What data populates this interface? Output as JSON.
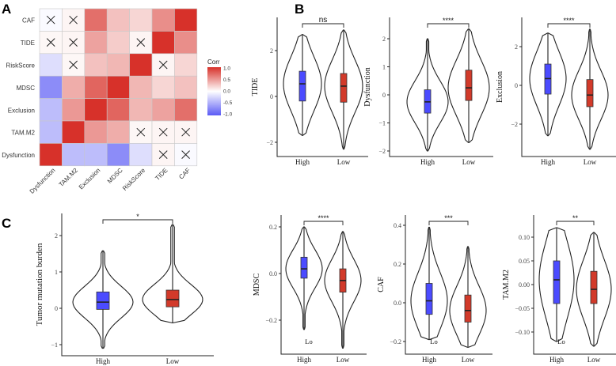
{
  "panel_labels": [
    "A",
    "B",
    "C"
  ],
  "chart_data": [
    {
      "panel": "A",
      "type": "heatmap",
      "rows": [
        "CAF",
        "TIDE",
        "RiskScore",
        "MDSC",
        "Exclusion",
        "TAM.M2",
        "Dysfunction"
      ],
      "columns": [
        "Dysfunction",
        "TAM.M2",
        "Exclusion",
        "MDSC",
        "RiskScore",
        "TIDE",
        "CAF"
      ],
      "values": [
        [
          -0.03,
          0.05,
          0.7,
          0.3,
          0.2,
          0.55,
          1.0
        ],
        [
          0.04,
          0.05,
          0.45,
          0.25,
          0.05,
          1.0,
          0.55
        ],
        [
          -0.2,
          0.04,
          0.3,
          0.35,
          1.0,
          0.05,
          0.2
        ],
        [
          -0.7,
          0.4,
          0.75,
          1.0,
          0.35,
          0.2,
          0.3
        ],
        [
          -0.4,
          0.5,
          1.0,
          0.75,
          0.35,
          0.45,
          0.7
        ],
        [
          -0.4,
          1.0,
          0.5,
          0.4,
          0.04,
          0.05,
          0.05
        ],
        [
          1.0,
          -0.4,
          -0.4,
          -0.7,
          -0.2,
          0.05,
          -0.03
        ]
      ],
      "nonsignificant": [
        [
          0,
          0
        ],
        [
          0,
          1
        ],
        [
          1,
          0
        ],
        [
          1,
          1
        ],
        [
          1,
          4
        ],
        [
          2,
          1
        ],
        [
          2,
          5
        ],
        [
          5,
          4
        ],
        [
          5,
          5
        ],
        [
          5,
          6
        ],
        [
          6,
          5
        ],
        [
          6,
          6
        ]
      ],
      "legend": {
        "title": "Corr",
        "ticks": [
          "1.0",
          "0.5",
          "0.0",
          "-0.5",
          "-1.0"
        ],
        "range": [
          -1,
          1
        ]
      },
      "colors": {
        "low": "#5b5bf5",
        "mid": "#ffffff",
        "high": "#d7312a"
      }
    },
    {
      "panel": "B",
      "type": "violin",
      "ylabel": "TIDE",
      "categories": [
        "High",
        "Low"
      ],
      "yticks": [
        -2,
        0,
        2
      ],
      "ylim": [
        -2.6,
        3.3
      ],
      "significance": "ns",
      "groups": [
        {
          "min": -1.7,
          "q1": -0.2,
          "median": 0.55,
          "q3": 1.1,
          "max": 2.7,
          "color": "#4b4bff"
        },
        {
          "min": -2.3,
          "q1": -0.25,
          "median": 0.45,
          "q3": 1.0,
          "max": 2.9,
          "color": "#d23a2a"
        }
      ]
    },
    {
      "panel": "B",
      "type": "violin",
      "ylabel": "Dysfunction",
      "categories": [
        "High",
        "Low"
      ],
      "yticks": [
        -2,
        -1,
        0,
        1,
        2
      ],
      "ylim": [
        -2.2,
        2.7
      ],
      "significance": "****",
      "groups": [
        {
          "min": -2.0,
          "q1": -0.65,
          "median": -0.25,
          "q3": 0.18,
          "max": 2.0,
          "color": "#4b4bff"
        },
        {
          "min": -1.7,
          "q1": -0.2,
          "median": 0.25,
          "q3": 0.88,
          "max": 2.35,
          "color": "#d23a2a"
        }
      ]
    },
    {
      "panel": "B",
      "type": "violin",
      "ylabel": "Exclusion",
      "categories": [
        "High",
        "Low"
      ],
      "yticks": [
        -2,
        0,
        2
      ],
      "ylim": [
        -3.6,
        3.5
      ],
      "significance": "****",
      "groups": [
        {
          "min": -2.6,
          "q1": -0.45,
          "median": 0.35,
          "q3": 1.1,
          "max": 2.7,
          "color": "#4b4bff"
        },
        {
          "min": -3.3,
          "q1": -1.1,
          "median": -0.5,
          "q3": 0.3,
          "max": 2.9,
          "color": "#d23a2a"
        }
      ]
    },
    {
      "panel": "C",
      "type": "violin",
      "ylabel": "Tumor mutation burden",
      "categories": [
        "High",
        "Low"
      ],
      "yticks": [
        -1,
        0,
        1,
        2
      ],
      "ylim": [
        -1.3,
        2.6
      ],
      "significance": "*",
      "groups": [
        {
          "min": -1.1,
          "q1": -0.03,
          "median": 0.17,
          "q3": 0.45,
          "max": 1.58,
          "color": "#4b4bff"
        },
        {
          "min": -0.4,
          "q1": 0.04,
          "median": 0.24,
          "q3": 0.5,
          "max": 2.3,
          "color": "#d23a2a"
        }
      ]
    },
    {
      "panel": "C",
      "type": "violin",
      "ylabel": "MDSC",
      "categories": [
        "High",
        "Low"
      ],
      "yticks": [
        -0.2,
        0.0,
        0.2
      ],
      "ylim": [
        -0.35,
        0.25
      ],
      "significance": "****",
      "annotation": "Lo",
      "groups": [
        {
          "min": -0.24,
          "q1": -0.02,
          "median": 0.02,
          "q3": 0.07,
          "max": 0.2,
          "color": "#4b4bff"
        },
        {
          "min": -0.32,
          "q1": -0.08,
          "median": -0.03,
          "q3": 0.02,
          "max": 0.18,
          "color": "#d23a2a"
        }
      ]
    },
    {
      "panel": "C",
      "type": "violin",
      "ylabel": "CAF",
      "categories": [
        "High",
        "Low"
      ],
      "yticks": [
        -0.2,
        0.0,
        0.2,
        0.4
      ],
      "ylim": [
        -0.26,
        0.45
      ],
      "significance": "***",
      "annotation": "Lo",
      "groups": [
        {
          "min": -0.19,
          "q1": -0.06,
          "median": 0.01,
          "q3": 0.1,
          "max": 0.39,
          "color": "#4b4bff"
        },
        {
          "min": -0.23,
          "q1": -0.1,
          "median": -0.04,
          "q3": 0.04,
          "max": 0.29,
          "color": "#d23a2a"
        }
      ]
    },
    {
      "panel": "C",
      "type": "violin",
      "ylabel": "TAM.M2",
      "categories": [
        "High",
        "Low"
      ],
      "yticks": [
        -0.1,
        -0.05,
        0.0,
        0.05,
        0.1
      ],
      "ylim": [
        -0.14,
        0.14
      ],
      "significance": "**",
      "annotation": "Lo",
      "groups": [
        {
          "min": -0.12,
          "q1": -0.04,
          "median": 0.01,
          "q3": 0.05,
          "max": 0.12,
          "color": "#4b4bff"
        },
        {
          "min": -0.13,
          "q1": -0.04,
          "median": -0.01,
          "q3": 0.028,
          "max": 0.11,
          "color": "#d23a2a"
        }
      ]
    }
  ]
}
